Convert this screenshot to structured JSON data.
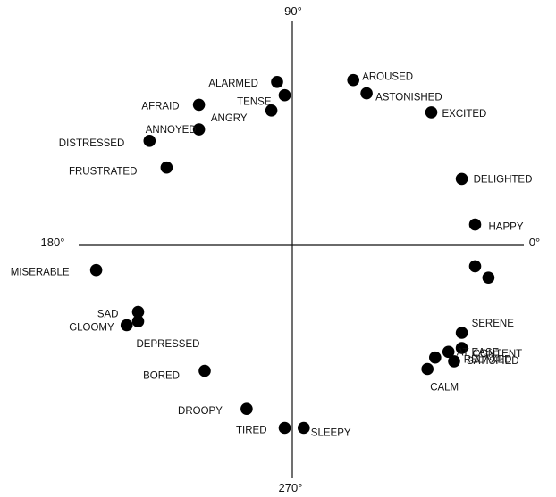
{
  "chart_data": {
    "type": "scatter",
    "axis_labels": {
      "top": "90°",
      "left": "180°",
      "right": "0°",
      "bottom": "270°"
    },
    "points": [
      {
        "label": "ALARMED",
        "x": -0.08,
        "y": 0.86
      },
      {
        "label": "TENSE",
        "x": -0.04,
        "y": 0.79
      },
      {
        "label": "AFRAID",
        "x": -0.49,
        "y": 0.74
      },
      {
        "label": "ANGRY",
        "x": -0.11,
        "y": 0.71
      },
      {
        "label": "ANNOYED",
        "x": -0.49,
        "y": 0.61
      },
      {
        "label": "DISTRESSED",
        "x": -0.75,
        "y": 0.55
      },
      {
        "label": "FRUSTRATED",
        "x": -0.66,
        "y": 0.41
      },
      {
        "label": "AROUSED",
        "x": 0.32,
        "y": 0.87
      },
      {
        "label": "ASTONISHED",
        "x": 0.39,
        "y": 0.8
      },
      {
        "label": "EXCITED",
        "x": 0.73,
        "y": 0.7
      },
      {
        "label": "DELIGHTED",
        "x": 0.89,
        "y": 0.35
      },
      {
        "label": "HAPPY",
        "x": 0.96,
        "y": 0.11
      },
      {
        "label": "",
        "x": 0.96,
        "y": -0.11
      },
      {
        "label": "",
        "x": 1.03,
        "y": -0.17
      },
      {
        "label": "MISERABLE",
        "x": -1.03,
        "y": -0.13
      },
      {
        "label": "SAD",
        "x": -0.81,
        "y": -0.35
      },
      {
        "label": "GLOOMY",
        "x": -0.87,
        "y": -0.42
      },
      {
        "label": "DEPRESSED",
        "x": -0.81,
        "y": -0.4
      },
      {
        "label": "BORED",
        "x": -0.46,
        "y": -0.66
      },
      {
        "label": "DROOPY",
        "x": -0.24,
        "y": -0.86
      },
      {
        "label": "TIRED",
        "x": -0.04,
        "y": -0.96
      },
      {
        "label": "SLEEPY",
        "x": 0.06,
        "y": -0.96
      },
      {
        "label": "SERENE",
        "x": 0.89,
        "y": -0.46
      },
      {
        "label": "CONTENT",
        "x": 0.89,
        "y": -0.54
      },
      {
        "label": "AT EASE",
        "x": 0.82,
        "y": -0.56
      },
      {
        "label": "SATISFIED",
        "x": 0.85,
        "y": -0.61
      },
      {
        "label": "RELAXED",
        "x": 0.75,
        "y": -0.59
      },
      {
        "label": "CALM",
        "x": 0.71,
        "y": -0.65
      }
    ],
    "xlim": [
      -1.1,
      1.1
    ],
    "ylim": [
      -1.1,
      1.1
    ]
  }
}
